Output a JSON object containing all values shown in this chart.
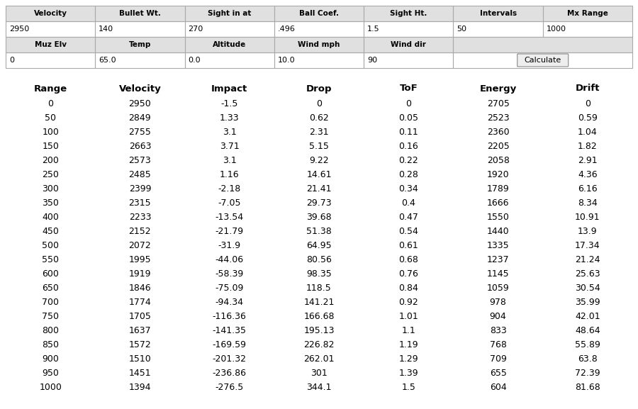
{
  "input_headers_row1": [
    "Velocity",
    "Bullet Wt.",
    "Sight in at",
    "Ball Coef.",
    "Sight Ht.",
    "Intervals",
    "Mx Range"
  ],
  "input_values_row1": [
    "2950",
    "140",
    "270",
    ".496",
    "1.5",
    "50",
    "1000"
  ],
  "input_headers_row2": [
    "Muz Elv",
    "Temp",
    "Altitude",
    "Wind mph",
    "Wind dir",
    "",
    ""
  ],
  "input_values_row2": [
    "0",
    "65.0",
    "0.0",
    "10.0",
    "90",
    "",
    "Calculate"
  ],
  "table_headers": [
    "Range",
    "Velocity",
    "Impact",
    "Drop",
    "ToF",
    "Energy",
    "Drift"
  ],
  "table_data": [
    [
      0,
      2950,
      -1.5,
      0,
      0,
      2705,
      0
    ],
    [
      50,
      2849,
      1.33,
      0.62,
      0.05,
      2523,
      0.59
    ],
    [
      100,
      2755,
      3.1,
      2.31,
      0.11,
      2360,
      1.04
    ],
    [
      150,
      2663,
      3.71,
      5.15,
      0.16,
      2205,
      1.82
    ],
    [
      200,
      2573,
      3.1,
      9.22,
      0.22,
      2058,
      2.91
    ],
    [
      250,
      2485,
      1.16,
      14.61,
      0.28,
      1920,
      4.36
    ],
    [
      300,
      2399,
      -2.18,
      21.41,
      0.34,
      1789,
      6.16
    ],
    [
      350,
      2315,
      -7.05,
      29.73,
      0.4,
      1666,
      8.34
    ],
    [
      400,
      2233,
      -13.54,
      39.68,
      0.47,
      1550,
      10.91
    ],
    [
      450,
      2152,
      -21.79,
      51.38,
      0.54,
      1440,
      13.9
    ],
    [
      500,
      2072,
      -31.9,
      64.95,
      0.61,
      1335,
      17.34
    ],
    [
      550,
      1995,
      -44.06,
      80.56,
      0.68,
      1237,
      21.24
    ],
    [
      600,
      1919,
      -58.39,
      98.35,
      0.76,
      1145,
      25.63
    ],
    [
      650,
      1846,
      -75.09,
      118.5,
      0.84,
      1059,
      30.54
    ],
    [
      700,
      1774,
      -94.34,
      141.21,
      0.92,
      978,
      35.99
    ],
    [
      750,
      1705,
      -116.36,
      166.68,
      1.01,
      904,
      42.01
    ],
    [
      800,
      1637,
      -141.35,
      195.13,
      1.1,
      833,
      48.64
    ],
    [
      850,
      1572,
      -169.59,
      226.82,
      1.19,
      768,
      55.89
    ],
    [
      900,
      1510,
      -201.32,
      262.01,
      1.29,
      709,
      63.8
    ],
    [
      950,
      1451,
      -236.86,
      301,
      1.39,
      655,
      72.39
    ],
    [
      1000,
      1394,
      -276.5,
      344.1,
      1.5,
      604,
      81.68
    ]
  ],
  "bg_color": "#ffffff",
  "header_bg": "#e0e0e0",
  "border_color": "#aaaaaa",
  "text_color": "#000000",
  "font_size_input_header": 7.5,
  "font_size_input_val": 8.0,
  "font_size_table_header": 9.5,
  "font_size_table_data": 9.0,
  "table_data_formats": [
    "0",
    "0",
    "g",
    "g",
    "g",
    "0",
    "g"
  ]
}
